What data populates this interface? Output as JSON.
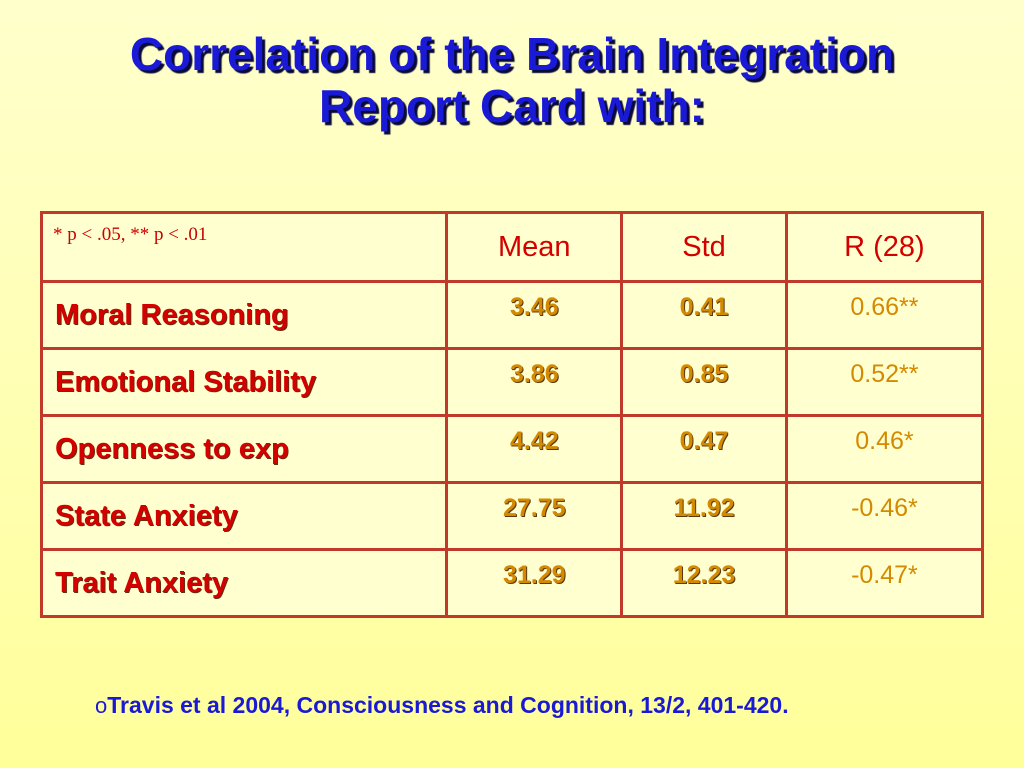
{
  "title": {
    "line1": "Correlation of the Brain Integration",
    "line2": "Report Card with:"
  },
  "table": {
    "legend": "* p < .05,  ** p < .01",
    "columns": [
      "Mean",
      "Std",
      "R (28)"
    ],
    "rows": [
      {
        "label": "Moral Reasoning",
        "mean": "3.46",
        "std": "0.41",
        "r": "0.66**"
      },
      {
        "label": "Emotional Stability",
        "mean": "3.86",
        "std": "0.85",
        "r": "0.52**"
      },
      {
        "label": "Openness to exp",
        "mean": "4.42",
        "std": "0.47",
        "r": "0.46*"
      },
      {
        "label": "State Anxiety",
        "mean": "27.75",
        "std": "11.92",
        "r": "-0.46*"
      },
      {
        "label": "Trait Anxiety",
        "mean": "31.29",
        "std": "12.23",
        "r": "-0.47*"
      }
    ]
  },
  "citation": {
    "bullet": "o",
    "text": "Travis et al 2004, Consciousness and Cognition, 13/2, 401-420."
  },
  "colors": {
    "title": "#1a1ad6",
    "table_border": "#c0392b",
    "row_label": "#d40000",
    "values": "#d48a00",
    "background": "#ffffb0"
  }
}
